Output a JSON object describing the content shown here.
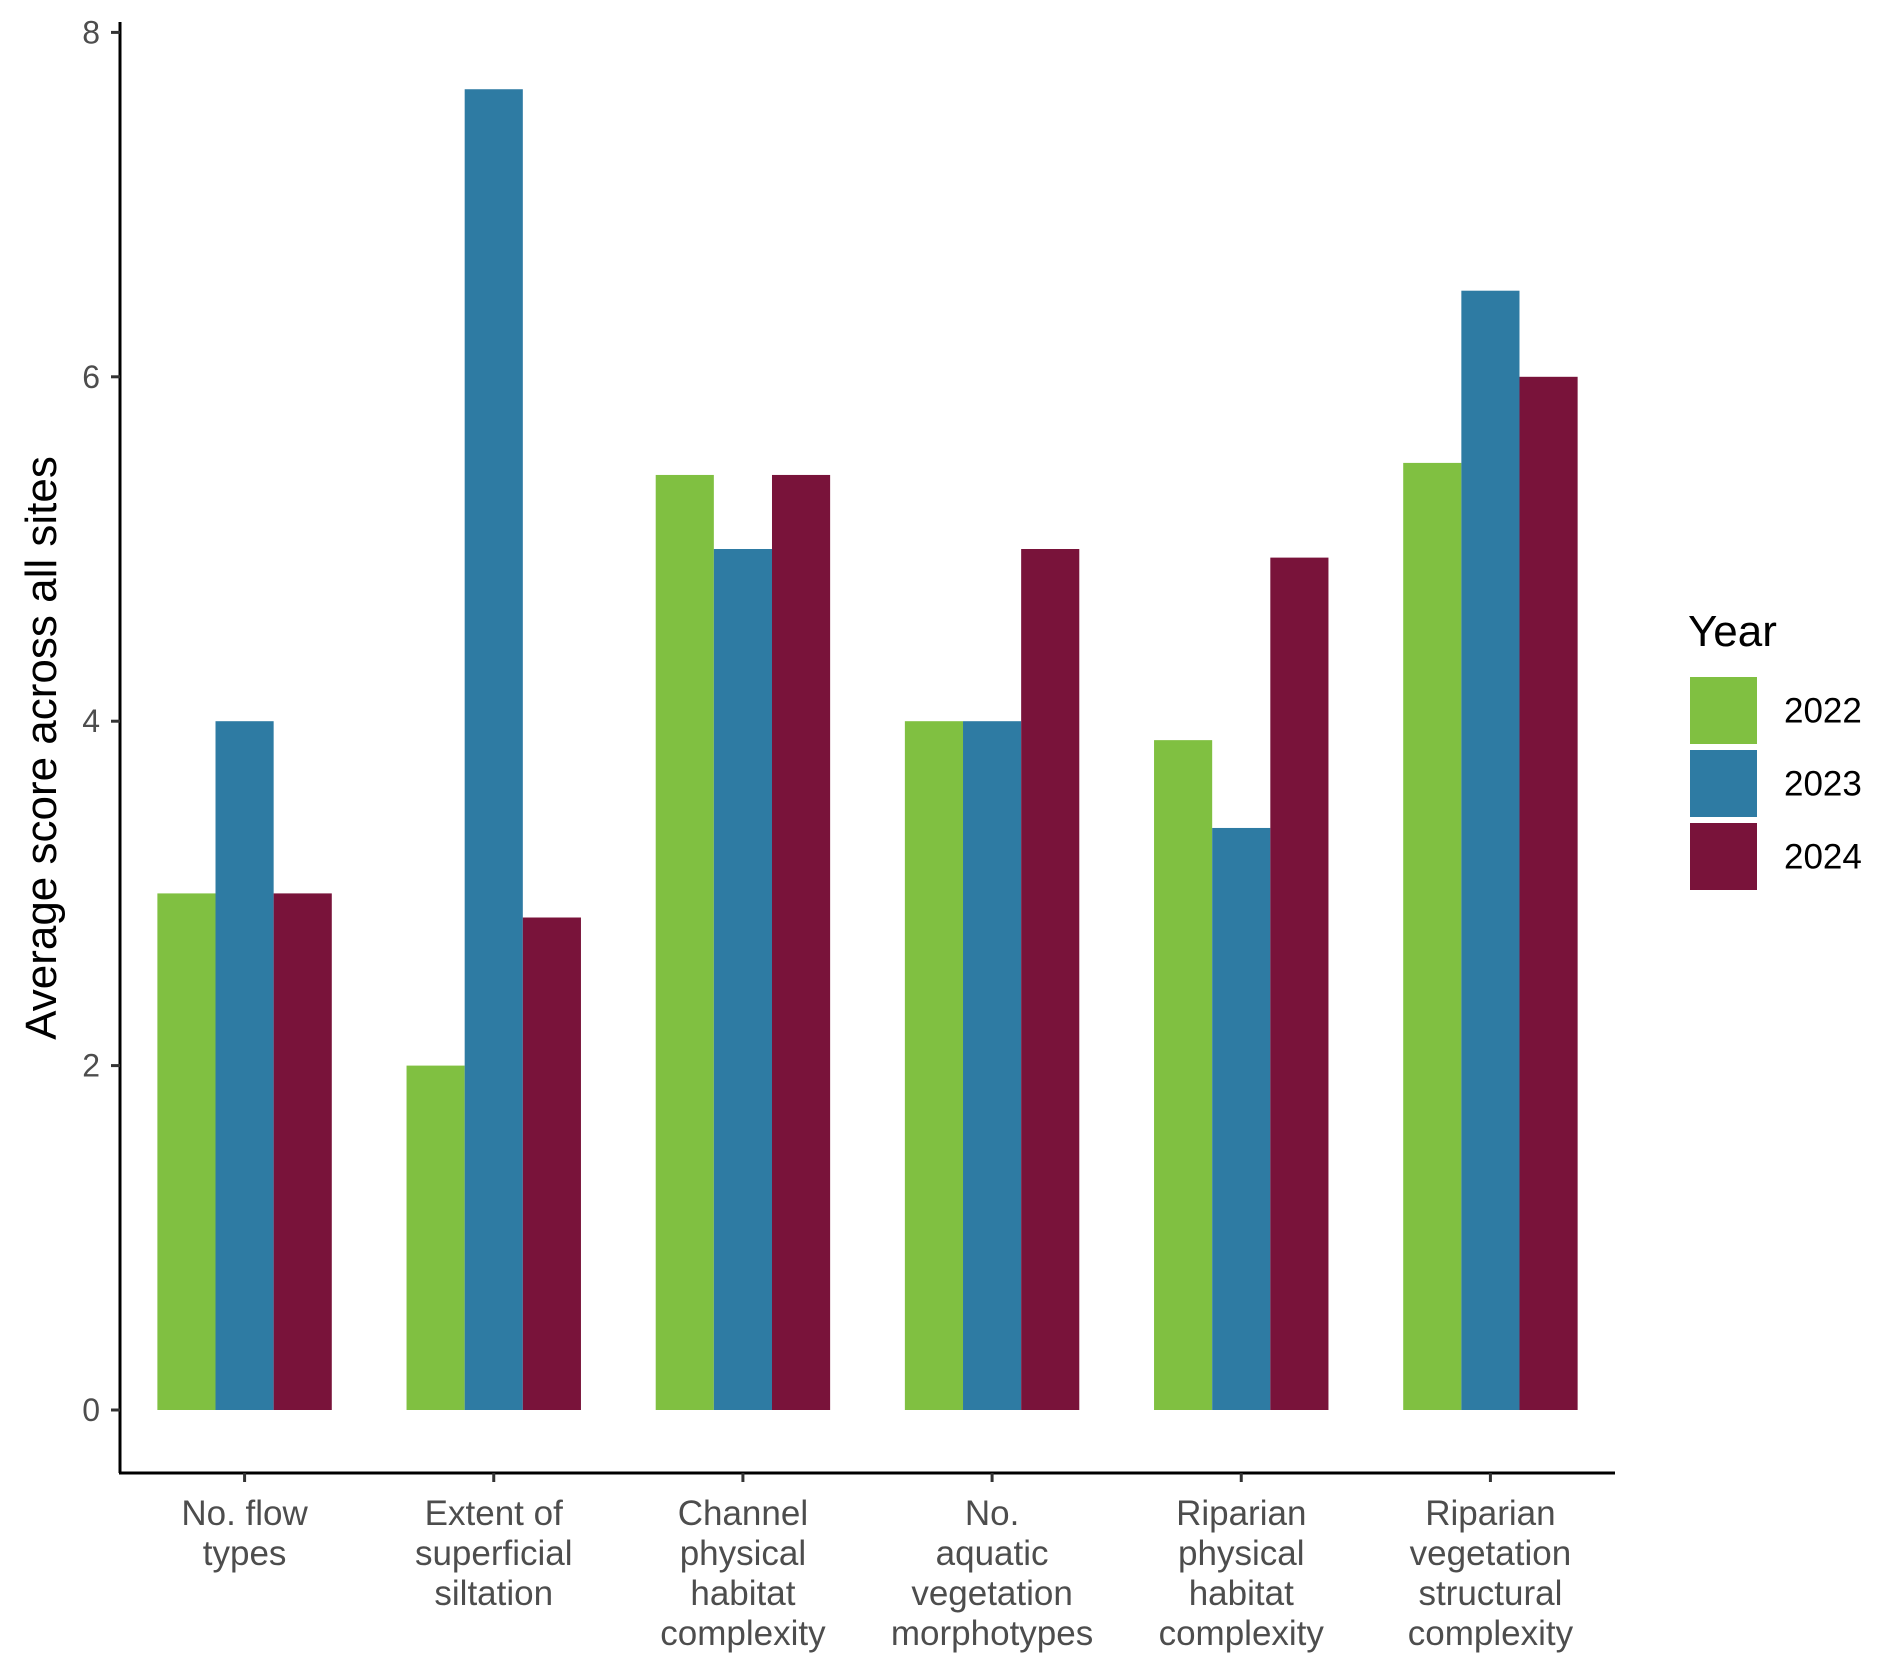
{
  "chart_data": {
    "type": "bar",
    "title": "",
    "xlabel": "",
    "ylabel": "Average score across all sites",
    "ylim": [
      -0.4,
      8
    ],
    "yticks": [
      0,
      2,
      4,
      6,
      8
    ],
    "grid": false,
    "categories": [
      [
        "No. flow",
        "types"
      ],
      [
        "Extent of",
        "superficial",
        "siltation"
      ],
      [
        "Channel",
        "physical",
        "habitat",
        "complexity"
      ],
      [
        "No.",
        "aquatic",
        "vegetation",
        "morphotypes"
      ],
      [
        "Riparian",
        "physical",
        "habitat",
        "complexity"
      ],
      [
        "Riparian",
        "vegetation",
        "structural",
        "complexity"
      ]
    ],
    "legend": {
      "title": "Year",
      "placement": "right"
    },
    "series": [
      {
        "name": "2022",
        "color": "#80c041",
        "values": [
          3,
          2,
          5.43,
          4,
          3.89,
          5.5
        ]
      },
      {
        "name": "2023",
        "color": "#2e7ba3",
        "values": [
          4,
          7.67,
          5,
          4,
          3.38,
          6.5
        ]
      },
      {
        "name": "2024",
        "color": "#79133a",
        "values": [
          3,
          2.86,
          5.43,
          5,
          4.95,
          6
        ]
      }
    ]
  }
}
